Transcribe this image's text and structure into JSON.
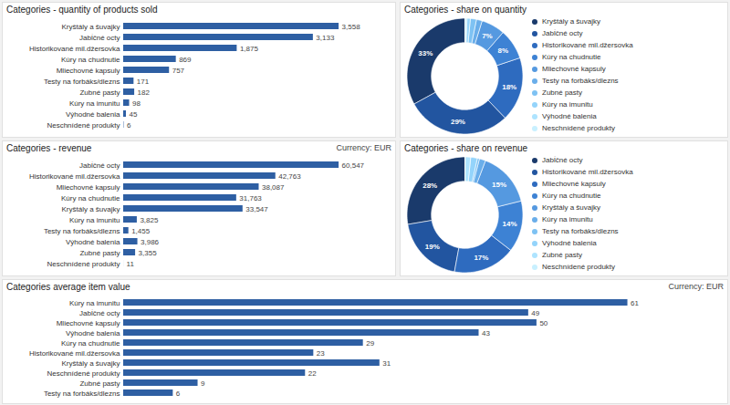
{
  "chart_data": [
    {
      "type": "bar",
      "title": "Categories - quantity of products sold",
      "orientation": "horizontal",
      "categories": [
        "Kryštály a šuvajky",
        "Jabĺčné octy",
        "Historikované mil.džersovka",
        "Kúry na chudnutie",
        "Mliechovné kapsuly",
        "Testy na forbáks/dlezns",
        "Zubné pasty",
        "Kúry na imunitu",
        "Výhodné balenia",
        "Neschnídené produkty"
      ],
      "values": [
        3558,
        3133,
        1875,
        869,
        757,
        171,
        182,
        98,
        45,
        6
      ],
      "value_labels": [
        "3,558",
        "3,133",
        "1,875",
        "869",
        "757",
        "171",
        "182",
        "98",
        "45",
        "6"
      ],
      "color": "#2e5fa3",
      "xlim": [
        0,
        4340.76
      ],
      "data_labels": true,
      "tick_labels": "y"
    },
    {
      "type": "donut",
      "title": "Categories - share on quantity",
      "categories": [
        "Kryštály a šuvajky",
        "Jabĺčné octy",
        "Historikované mil.džersovka",
        "Kúry na chudnutie",
        "Mliechovné kapsuly",
        "Testy na forbáks/dlezns",
        "Zubné pasty",
        "Kúry na imunitu",
        "Výhodné balenia",
        "Neschnídené produkty"
      ],
      "values": [
        32.99,
        29.22,
        17.91,
        8.48,
        6.6,
        1.6,
        1.7,
        0.94,
        0.47,
        0.09
      ],
      "value_labels": [
        "33%",
        "29%",
        "18%",
        "8%",
        "7%",
        null,
        null,
        null,
        null,
        null
      ],
      "colors": [
        "#1a3a6b",
        "#2255a0",
        "#2e6bbf",
        "#3d82d4",
        "#5599e0",
        "#6aaeea",
        "#7ec2f3",
        "#94d4fb",
        "#aee4ff",
        "#c8f0ff"
      ],
      "legend": "right",
      "data_labels": true
    },
    {
      "type": "bar",
      "title": "Categories - revenue",
      "subtitle": "Currency: EUR",
      "orientation": "horizontal",
      "categories": [
        "Jabĺčné octy",
        "Historikované mil.džersovka",
        "Mliechovné kapsuly",
        "Kúry na chudnutie",
        "Kryštály a šuvajky",
        "Kúry na imunitu",
        "Testy na forbáks/dlezns",
        "Výhodné balenia",
        "Zubné pasty",
        "Neschnídené produkty"
      ],
      "values": [
        60547,
        42763,
        38087,
        31763,
        33547,
        3825,
        1455,
        3986,
        3355,
        11
      ],
      "value_labels": [
        "60,547",
        "42,763",
        "38,087",
        "31,763",
        "33,547",
        "3,825",
        "1,455",
        "3,986",
        "3,355",
        "11"
      ],
      "color": "#2e5fa3",
      "xlim": [
        0,
        73867.34
      ],
      "data_labels": true,
      "tick_labels": "y"
    },
    {
      "type": "donut",
      "title": "Categories - share on revenue",
      "categories": [
        "Jabĺčné octy",
        "Historikované mil.džersovka",
        "Mliechovné kapsuly",
        "Kúry na chudnutie",
        "Kryštály a šuvajky",
        "Kúry na imunitu",
        "Testy na forbáks/dlezns",
        "Výhodné balenia",
        "Zubné pasty",
        "Neschnídené produkty"
      ],
      "values": [
        27.65,
        19.46,
        17.41,
        14.34,
        15.36,
        1.74,
        0.61,
        1.84,
        1.54,
        0.05
      ],
      "value_labels": [
        "28%",
        "19%",
        "17%",
        "14%",
        "15%",
        null,
        null,
        null,
        null,
        null
      ],
      "colors": [
        "#1a3a6b",
        "#2255a0",
        "#2e6bbf",
        "#3d82d4",
        "#5599e0",
        "#6aaeea",
        "#7ec2f3",
        "#94d4fb",
        "#aee4ff",
        "#c8f0ff"
      ],
      "legend": "right",
      "data_labels": true
    },
    {
      "type": "bar",
      "title": "Categories average item value",
      "subtitle": "Currency: EUR",
      "orientation": "horizontal",
      "categories": [
        "Kúry na imunitu",
        "Jabĺčné octy",
        "Mliechovné kapsuly",
        "Výhodné balenia",
        "Kúry na chudnutie",
        "Historikované mil.džersovka",
        "Kryštály a šuvajky",
        "Neschnídené produkty",
        "Zubné pasty",
        "Testy na forbáks/dlezns"
      ],
      "values": [
        61,
        49,
        50,
        43,
        29,
        23,
        31,
        22,
        9,
        6
      ],
      "color": "#2e5fa3",
      "xlim": [
        0,
        71.98
      ],
      "data_labels": true,
      "tick_labels": "y"
    }
  ]
}
